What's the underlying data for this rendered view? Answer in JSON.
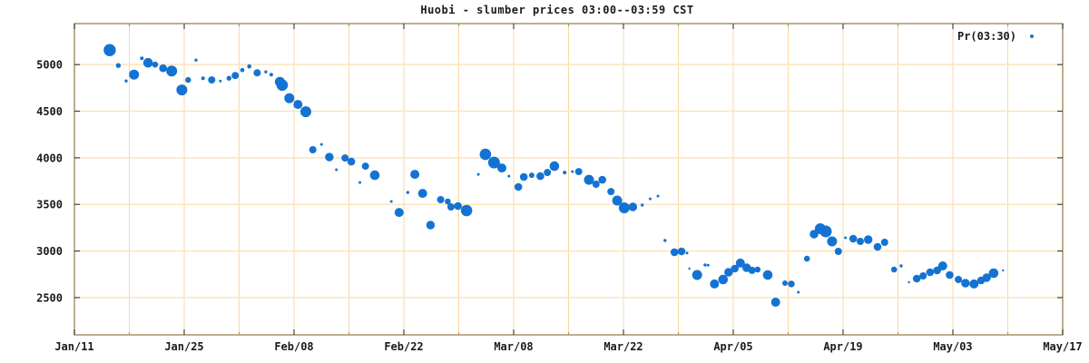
{
  "chart_data": {
    "type": "scatter",
    "title": "Huobi - slumber prices 03:00--03:59 CST",
    "legend": {
      "label": "Pr(03:30)",
      "position": "top-right"
    },
    "x_axis": {
      "tick_labels": [
        "Jan/11",
        "Jan/25",
        "Feb/08",
        "Feb/22",
        "Mar/08",
        "Mar/22",
        "Apr/05",
        "Apr/19",
        "May/03",
        "May/17"
      ],
      "major_tick_interval_days": 14,
      "minor_tick_interval_days": 7,
      "range_days": [
        0,
        126
      ]
    },
    "y_axis": {
      "ticks": [
        2500,
        3000,
        3500,
        4000,
        4500,
        5000
      ],
      "range": [
        2100,
        5440
      ]
    },
    "grid": true,
    "colors": {
      "marker": "#1473d2",
      "grid_h": "#fce4bc",
      "grid_v": "#fbd9a4",
      "border": "#a8946a",
      "major_tick": "#4a4238",
      "text": "#1a1a1a"
    },
    "points": [
      [
        4.5,
        5156,
        6.7
      ],
      [
        5.6,
        4990,
        2.7
      ],
      [
        6.6,
        4825,
        1.7
      ],
      [
        7.6,
        4893,
        5.5
      ],
      [
        8.6,
        5068,
        2.0
      ],
      [
        9.4,
        5019,
        5.3
      ],
      [
        10.3,
        5000,
        3.3
      ],
      [
        11.3,
        4961,
        4.3
      ],
      [
        12.4,
        4932,
        6.0
      ],
      [
        13.3,
        4747,
        2.0
      ],
      [
        13.7,
        4728,
        6.0
      ],
      [
        14.5,
        4835,
        3.2
      ],
      [
        15.5,
        5049,
        1.7
      ],
      [
        16.4,
        4854,
        2.0
      ],
      [
        17.5,
        4835,
        4.0
      ],
      [
        18.6,
        4825,
        1.5
      ],
      [
        19.7,
        4854,
        2.7
      ],
      [
        20.5,
        4883,
        4.0
      ],
      [
        21.4,
        4941,
        2.3
      ],
      [
        22.3,
        4980,
        2.3
      ],
      [
        23.3,
        4912,
        4.0
      ],
      [
        24.4,
        4922,
        1.7
      ],
      [
        25.1,
        4893,
        2.0
      ],
      [
        26.2,
        4815,
        5.5
      ],
      [
        26.5,
        4780,
        6.3
      ],
      [
        27.4,
        4640,
        5.5
      ],
      [
        28.5,
        4572,
        5.0
      ],
      [
        29.5,
        4494,
        6.0
      ],
      [
        30.4,
        4086,
        4.0
      ],
      [
        31.5,
        4144,
        1.5
      ],
      [
        32.5,
        4008,
        4.7
      ],
      [
        33.4,
        3872,
        1.5
      ],
      [
        34.5,
        3998,
        4.0
      ],
      [
        35.3,
        3959,
        4.3
      ],
      [
        36.4,
        3735,
        1.5
      ],
      [
        37.1,
        3910,
        4.0
      ],
      [
        38.3,
        3813,
        5.3
      ],
      [
        40.4,
        3531,
        1.5
      ],
      [
        41.4,
        3414,
        5.0
      ],
      [
        42.5,
        3628,
        1.7
      ],
      [
        43.4,
        3823,
        5.0
      ],
      [
        44.4,
        3618,
        5.0
      ],
      [
        45.4,
        3278,
        4.7
      ],
      [
        46.7,
        3551,
        4.0
      ],
      [
        47.6,
        3531,
        3.3
      ],
      [
        48.0,
        3473,
        4.0
      ],
      [
        48.9,
        3483,
        4.3
      ],
      [
        50.0,
        3434,
        6.3
      ],
      [
        51.5,
        3823,
        1.5
      ],
      [
        52.4,
        4037,
        6.3
      ],
      [
        53.5,
        3949,
        6.5
      ],
      [
        54.5,
        3891,
        5.0
      ],
      [
        55.4,
        3803,
        1.5
      ],
      [
        56.6,
        3687,
        4.3
      ],
      [
        57.3,
        3794,
        4.3
      ],
      [
        58.3,
        3813,
        3.0
      ],
      [
        59.4,
        3803,
        4.3
      ],
      [
        60.3,
        3842,
        4.0
      ],
      [
        61.2,
        3910,
        5.3
      ],
      [
        62.5,
        3842,
        2.0
      ],
      [
        63.5,
        3852,
        1.5
      ],
      [
        64.3,
        3852,
        4.0
      ],
      [
        65.6,
        3764,
        5.5
      ],
      [
        66.5,
        3716,
        4.0
      ],
      [
        67.3,
        3764,
        4.3
      ],
      [
        68.4,
        3638,
        4.0
      ],
      [
        69.2,
        3541,
        5.5
      ],
      [
        70.1,
        3463,
        6.0
      ],
      [
        71.2,
        3473,
        4.7
      ],
      [
        72.4,
        3492,
        1.7
      ],
      [
        73.4,
        3560,
        1.5
      ],
      [
        74.4,
        3589,
        1.5
      ],
      [
        75.3,
        3113,
        1.7
      ],
      [
        76.5,
        2987,
        4.3
      ],
      [
        77.4,
        2996,
        4.3
      ],
      [
        78.1,
        2977,
        1.5
      ],
      [
        78.4,
        2811,
        1.2
      ],
      [
        79.4,
        2743,
        5.5
      ],
      [
        80.4,
        2850,
        1.7
      ],
      [
        80.8,
        2847,
        1.5
      ],
      [
        81.6,
        2646,
        5.0
      ],
      [
        82.7,
        2694,
        5.3
      ],
      [
        83.4,
        2772,
        4.7
      ],
      [
        84.2,
        2811,
        4.3
      ],
      [
        84.9,
        2870,
        5.0
      ],
      [
        85.7,
        2821,
        4.7
      ],
      [
        86.4,
        2792,
        4.0
      ],
      [
        87.1,
        2801,
        3.3
      ],
      [
        88.4,
        2743,
        5.3
      ],
      [
        89.4,
        2451,
        5.0
      ],
      [
        90.6,
        2655,
        3.0
      ],
      [
        91.4,
        2646,
        3.7
      ],
      [
        92.3,
        2558,
        1.5
      ],
      [
        93.4,
        2918,
        3.3
      ],
      [
        94.3,
        3181,
        4.7
      ],
      [
        95.1,
        3239,
        6.0
      ],
      [
        95.8,
        3210,
        6.5
      ],
      [
        96.6,
        3103,
        5.5
      ],
      [
        97.4,
        2996,
        4.0
      ],
      [
        98.3,
        3142,
        1.5
      ],
      [
        99.3,
        3132,
        4.3
      ],
      [
        100.2,
        3103,
        4.0
      ],
      [
        101.2,
        3122,
        4.7
      ],
      [
        102.4,
        3045,
        4.3
      ],
      [
        103.3,
        3093,
        4.0
      ],
      [
        104.5,
        2801,
        3.3
      ],
      [
        105.4,
        2840,
        1.7
      ],
      [
        106.4,
        2665,
        1.2
      ],
      [
        107.4,
        2704,
        4.3
      ],
      [
        108.2,
        2733,
        4.0
      ],
      [
        109.1,
        2772,
        4.3
      ],
      [
        110.0,
        2792,
        4.3
      ],
      [
        110.7,
        2840,
        5.0
      ],
      [
        111.6,
        2743,
        4.3
      ],
      [
        112.7,
        2694,
        4.0
      ],
      [
        113.6,
        2655,
        4.7
      ],
      [
        114.7,
        2646,
        5.0
      ],
      [
        115.6,
        2684,
        4.3
      ],
      [
        116.3,
        2714,
        4.7
      ],
      [
        117.2,
        2762,
        5.3
      ],
      [
        118.4,
        2791,
        1.2
      ]
    ]
  }
}
